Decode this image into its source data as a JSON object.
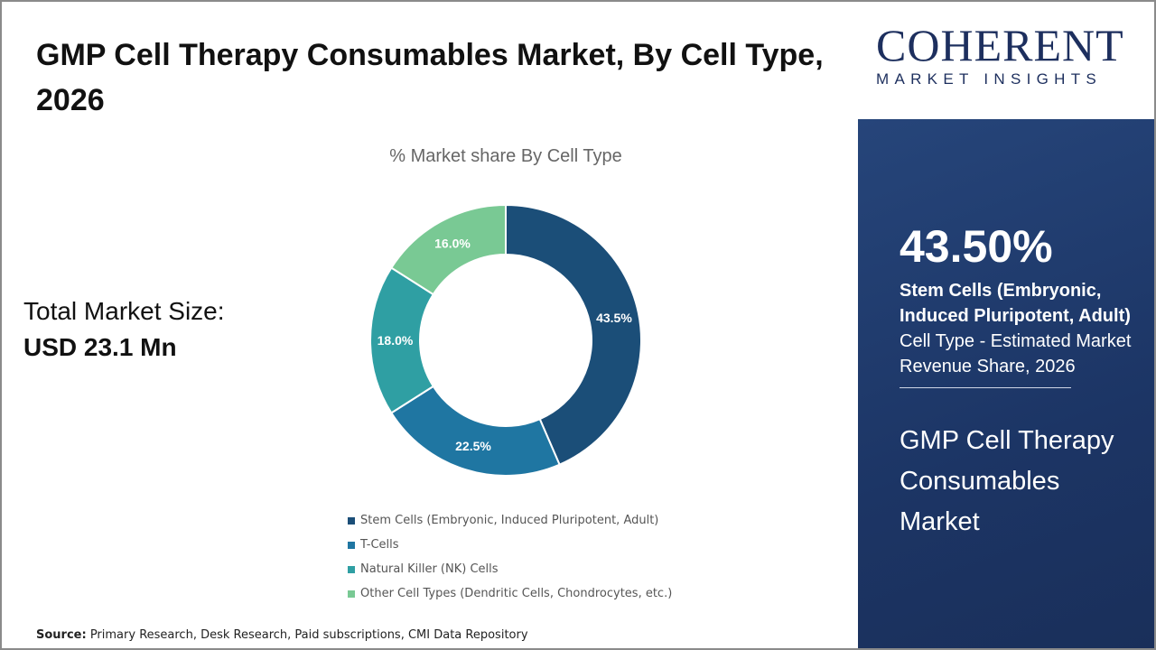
{
  "title": "GMP Cell Therapy Consumables Market, By Cell Type, 2026",
  "total_market": {
    "label": "Total Market Size:",
    "value": "USD 23.1 Mn"
  },
  "source": {
    "label": "Source:",
    "text": " Primary Research, Desk Research, Paid subscriptions, CMI Data Repository"
  },
  "logo": {
    "big": "COHERENT",
    "small": "MARKET INSIGHTS"
  },
  "highlight": {
    "percent": "43.50%",
    "bold": "Stem Cells (Embryonic, Induced Pluripotent, Adult)",
    "rest": " Cell Type - Estimated Market Revenue Share, 2026",
    "market": "GMP Cell Therapy Consumables Market"
  },
  "chart_data": {
    "type": "pie",
    "donut": true,
    "title": "% Market share By Cell Type",
    "categories": [
      "Stem Cells (Embryonic, Induced Pluripotent, Adult)",
      "T-Cells",
      "Natural Killer (NK) Cells",
      "Other Cell Types (Dendritic Cells, Chondrocytes, etc.)"
    ],
    "values": [
      43.5,
      22.5,
      18.0,
      16.0
    ],
    "labels": [
      "43.5%",
      "22.5%",
      "18.0%",
      "16.0%"
    ],
    "colors": [
      "#1b4e78",
      "#1f76a2",
      "#2f9fa3",
      "#79c994"
    ],
    "legend": "bottom"
  }
}
